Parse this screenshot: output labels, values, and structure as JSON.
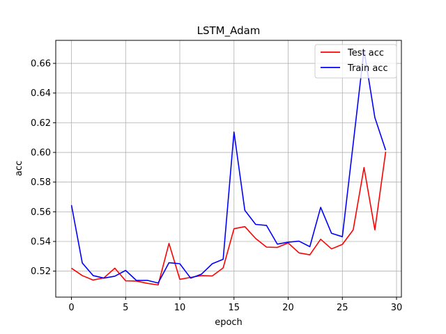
{
  "chart_data": {
    "type": "line",
    "title": "LSTM_Adam",
    "xlabel": "epoch",
    "ylabel": "acc",
    "xlim": [
      -1.45,
      30.45
    ],
    "ylim": [
      0.5025,
      0.6755
    ],
    "xticks": [
      0,
      5,
      10,
      15,
      20,
      25,
      30
    ],
    "yticks": [
      0.52,
      0.54,
      0.56,
      0.58,
      0.6,
      0.62,
      0.64,
      0.66
    ],
    "xtick_labels": [
      "0",
      "5",
      "10",
      "15",
      "20",
      "25",
      "30"
    ],
    "ytick_labels": [
      "0.52",
      "0.54",
      "0.56",
      "0.58",
      "0.60",
      "0.62",
      "0.64",
      "0.66"
    ],
    "grid": true,
    "legend_position": "top-right",
    "x": [
      0,
      1,
      2,
      3,
      4,
      5,
      6,
      7,
      8,
      9,
      10,
      11,
      12,
      13,
      14,
      15,
      16,
      17,
      18,
      19,
      20,
      21,
      22,
      23,
      24,
      25,
      26,
      27,
      28,
      29
    ],
    "series": [
      {
        "name": "Test acc",
        "color": "#ff0000",
        "values": [
          0.522,
          0.517,
          0.514,
          0.5155,
          0.522,
          0.5135,
          0.5133,
          0.5118,
          0.5107,
          0.5387,
          0.5145,
          0.5158,
          0.517,
          0.5168,
          0.5222,
          0.5486,
          0.55,
          0.542,
          0.5362,
          0.536,
          0.539,
          0.5323,
          0.531,
          0.5415,
          0.535,
          0.538,
          0.5478,
          0.5898,
          0.5478,
          0.6005
        ]
      },
      {
        "name": "Train acc",
        "color": "#0000ff",
        "values": [
          0.5645,
          0.5255,
          0.517,
          0.5153,
          0.5166,
          0.5205,
          0.5137,
          0.5138,
          0.512,
          0.5257,
          0.525,
          0.5153,
          0.518,
          0.525,
          0.528,
          0.6137,
          0.561,
          0.5515,
          0.5508,
          0.5382,
          0.5395,
          0.5402,
          0.5365,
          0.563,
          0.5455,
          0.5432,
          0.6058,
          0.669,
          0.6235,
          0.6015
        ]
      }
    ]
  }
}
